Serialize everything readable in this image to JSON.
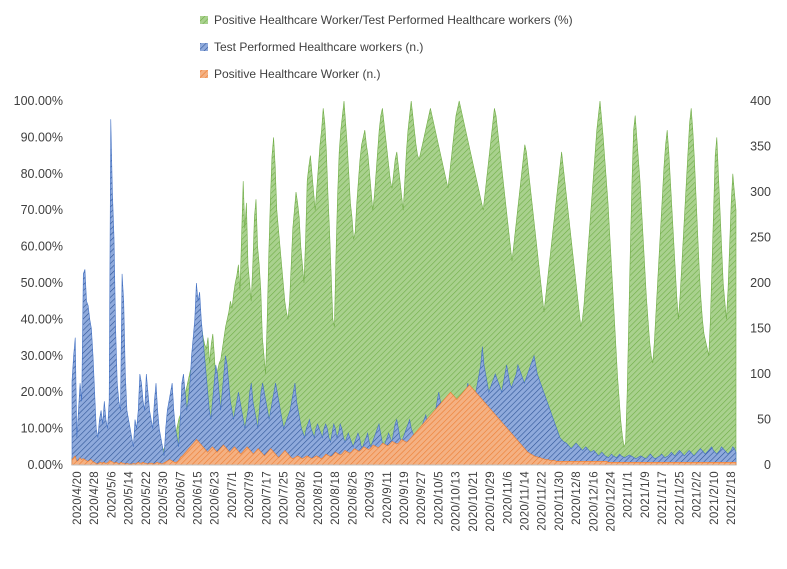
{
  "chart_data": {
    "type": "area",
    "title": "",
    "xlabel": "",
    "ylabel_left": "",
    "ylabel_right": "",
    "ylim_left": [
      0,
      100
    ],
    "ylim_right": [
      0,
      400
    ],
    "y_left_ticks": [
      "0.00%",
      "10.00%",
      "20.00%",
      "30.00%",
      "40.00%",
      "50.00%",
      "60.00%",
      "70.00%",
      "80.00%",
      "90.00%",
      "100.00%"
    ],
    "y_right_ticks": [
      "0",
      "50",
      "100",
      "150",
      "200",
      "250",
      "300",
      "350",
      "400"
    ],
    "x_tick_labels": [
      "2020/4/20",
      "2020/4/28",
      "2020/5/6",
      "2020/5/14",
      "2020/5/22",
      "2020/5/30",
      "2020/6/7",
      "2020/6/15",
      "2020/6/23",
      "2020/7/1",
      "2020/7/9",
      "2020/7/17",
      "2020/7/25",
      "2020/8/2",
      "2020/8/10",
      "2020/8/18",
      "2020/8/26",
      "2020/9/3",
      "2020/9/11",
      "2020/9/19",
      "2020/9/27",
      "2020/10/5",
      "2020/10/13",
      "2020/10/21",
      "2020/10/29",
      "2020/11/6",
      "2020/11/14",
      "2020/11/22",
      "2020/11/30",
      "2020/12/8",
      "2020/12/16",
      "2020/12/24",
      "2021/1/1",
      "2021/1/9",
      "2021/1/17",
      "2021/1/25",
      "2021/2/2",
      "2021/2/10",
      "2021/2/18"
    ],
    "legend_position": "top",
    "grid": false,
    "series": [
      {
        "name": "Positive Healthcare Worker/Test Performed Healthcare workers (%)",
        "axis": "left",
        "unit": "%",
        "color": "#8cc66e",
        "values": [
          2,
          3,
          4,
          5,
          3,
          2,
          2,
          2,
          3,
          2,
          2,
          2,
          1,
          1,
          2,
          3,
          3,
          4,
          3,
          5,
          3,
          3,
          2,
          2,
          4,
          3,
          3,
          2,
          2,
          3,
          1,
          2,
          2,
          2,
          3,
          2,
          3,
          2,
          1,
          2,
          2,
          2,
          3,
          2,
          2,
          3,
          2,
          3,
          2,
          3,
          3,
          2,
          2,
          3,
          5,
          4,
          6,
          4,
          5,
          4,
          5,
          6,
          5,
          6,
          8,
          9,
          11,
          13,
          14,
          16,
          18,
          20,
          22,
          24,
          26,
          27,
          30,
          33,
          36,
          43,
          40,
          38,
          35,
          33,
          32,
          35,
          28,
          33,
          36,
          30,
          22,
          26,
          28,
          29,
          32,
          35,
          38,
          40,
          42,
          45,
          43,
          47,
          50,
          52,
          55,
          48,
          63,
          78,
          65,
          72,
          55,
          50,
          45,
          55,
          68,
          73,
          60,
          55,
          48,
          35,
          30,
          25,
          40,
          58,
          73,
          85,
          90,
          82,
          70,
          65,
          60,
          55,
          50,
          45,
          42,
          40,
          45,
          55,
          65,
          70,
          75,
          72,
          68,
          60,
          55,
          50,
          62,
          78,
          82,
          85,
          80,
          75,
          70,
          76,
          82,
          88,
          92,
          98,
          94,
          86,
          74,
          64,
          52,
          40,
          38,
          58,
          74,
          86,
          92,
          96,
          100,
          94,
          88,
          80,
          72,
          68,
          62,
          64,
          72,
          78,
          84,
          88,
          90,
          92,
          88,
          85,
          80,
          75,
          70,
          74,
          80,
          86,
          92,
          96,
          98,
          94,
          90,
          86,
          82,
          78,
          76,
          80,
          84,
          86,
          82,
          78,
          74,
          70,
          78,
          86,
          92,
          96,
          100,
          96,
          92,
          88,
          85,
          84,
          86,
          88,
          90,
          92,
          94,
          96,
          98,
          96,
          94,
          92,
          90,
          88,
          86,
          84,
          82,
          80,
          78,
          76,
          80,
          84,
          88,
          92,
          96,
          98,
          100,
          98,
          96,
          94,
          92,
          90,
          88,
          86,
          84,
          82,
          80,
          78,
          76,
          74,
          72,
          70,
          74,
          78,
          82,
          86,
          90,
          94,
          98,
          96,
          92,
          88,
          84,
          80,
          76,
          72,
          68,
          64,
          60,
          56,
          60,
          64,
          68,
          72,
          76,
          80,
          84,
          88,
          86,
          82,
          78,
          74,
          70,
          66,
          62,
          58,
          54,
          50,
          46,
          42,
          46,
          50,
          54,
          58,
          62,
          66,
          70,
          74,
          78,
          82,
          86,
          82,
          78,
          74,
          70,
          66,
          62,
          58,
          54,
          50,
          46,
          42,
          38,
          40,
          44,
          50,
          56,
          62,
          68,
          74,
          80,
          86,
          92,
          96,
          100,
          95,
          90,
          84,
          78,
          72,
          64,
          56,
          48,
          40,
          32,
          24,
          18,
          12,
          8,
          5,
          6,
          20,
          40,
          60,
          78,
          92,
          96,
          90,
          84,
          78,
          70,
          62,
          54,
          46,
          40,
          34,
          30,
          28,
          34,
          42,
          50,
          58,
          66,
          74,
          82,
          88,
          92,
          86,
          78,
          70,
          62,
          54,
          46,
          40,
          46,
          54,
          62,
          70,
          78,
          86,
          94,
          98,
          92,
          84,
          74,
          64,
          54,
          46,
          40,
          36,
          34,
          32,
          30,
          40,
          55,
          70,
          85,
          90,
          80,
          70,
          60,
          50,
          45,
          40,
          48,
          60,
          72,
          80,
          75,
          70
        ]
      },
      {
        "name": "Test Performed Healthcare workers (n.)",
        "axis": "right",
        "unit": "n.",
        "color": "#4472c4",
        "values": [
          92,
          120,
          140,
          30,
          60,
          90,
          70,
          210,
          215,
          180,
          175,
          160,
          150,
          120,
          80,
          40,
          30,
          50,
          60,
          45,
          70,
          50,
          40,
          70,
          380,
          300,
          250,
          150,
          90,
          70,
          60,
          210,
          180,
          100,
          60,
          50,
          40,
          30,
          20,
          50,
          40,
          60,
          100,
          90,
          70,
          60,
          100,
          80,
          60,
          50,
          40,
          70,
          90,
          60,
          40,
          30,
          20,
          10,
          40,
          60,
          70,
          80,
          90,
          60,
          40,
          30,
          20,
          50,
          90,
          100,
          80,
          60,
          70,
          90,
          120,
          140,
          160,
          200,
          180,
          190,
          160,
          140,
          120,
          100,
          80,
          60,
          50,
          70,
          90,
          110,
          100,
          80,
          60,
          80,
          100,
          120,
          110,
          90,
          70,
          60,
          50,
          60,
          70,
          80,
          70,
          60,
          50,
          40,
          50,
          60,
          80,
          90,
          70,
          60,
          50,
          40,
          60,
          80,
          90,
          80,
          70,
          60,
          50,
          60,
          70,
          80,
          90,
          80,
          70,
          60,
          50,
          40,
          45,
          50,
          55,
          60,
          70,
          80,
          90,
          70,
          60,
          50,
          40,
          35,
          30,
          40,
          45,
          50,
          40,
          35,
          30,
          40,
          45,
          40,
          35,
          30,
          40,
          45,
          40,
          30,
          25,
          35,
          45,
          40,
          30,
          35,
          45,
          40,
          30,
          25,
          30,
          35,
          30,
          25,
          20,
          25,
          30,
          35,
          30,
          20,
          20,
          25,
          30,
          35,
          25,
          20,
          25,
          30,
          35,
          40,
          45,
          35,
          25,
          20,
          25,
          30,
          35,
          30,
          25,
          35,
          45,
          50,
          40,
          30,
          25,
          30,
          35,
          40,
          45,
          50,
          40,
          35,
          30,
          25,
          30,
          35,
          40,
          45,
          50,
          55,
          45,
          40,
          35,
          40,
          50,
          60,
          70,
          80,
          70,
          60,
          50,
          45,
          50,
          55,
          60,
          65,
          70,
          60,
          50,
          45,
          50,
          55,
          60,
          70,
          80,
          90,
          80,
          70,
          60,
          70,
          80,
          90,
          100,
          110,
          130,
          110,
          100,
          90,
          80,
          85,
          90,
          95,
          100,
          95,
          90,
          85,
          80,
          90,
          100,
          110,
          100,
          90,
          85,
          90,
          95,
          100,
          110,
          105,
          100,
          95,
          90,
          95,
          100,
          105,
          110,
          115,
          120,
          110,
          100,
          95,
          90,
          85,
          80,
          75,
          70,
          65,
          60,
          55,
          50,
          45,
          40,
          35,
          30,
          28,
          26,
          25,
          24,
          22,
          20,
          18,
          20,
          22,
          24,
          22,
          20,
          18,
          16,
          18,
          20,
          18,
          16,
          14,
          15,
          16,
          14,
          12,
          10,
          12,
          14,
          12,
          10,
          9,
          8,
          10,
          12,
          10,
          9,
          8,
          10,
          12,
          10,
          9,
          8,
          9,
          10,
          11,
          10,
          9,
          8,
          7,
          8,
          9,
          10,
          9,
          8,
          7,
          8,
          10,
          12,
          10,
          8,
          7,
          8,
          9,
          10,
          12,
          10,
          8,
          9,
          10,
          12,
          14,
          12,
          10,
          12,
          14,
          16,
          14,
          12,
          10,
          12,
          14,
          16,
          14,
          12,
          10,
          12,
          14,
          16,
          18,
          16,
          14,
          12,
          14,
          16,
          18,
          20,
          16,
          14,
          12,
          14,
          16,
          20,
          18,
          16,
          14,
          12,
          14,
          16,
          20,
          18,
          14
        ]
      },
      {
        "name": "Positive Healthcare Worker (n.)",
        "axis": "right",
        "unit": "n.",
        "color": "#ed7d31",
        "values": [
          6,
          8,
          10,
          4,
          5,
          8,
          6,
          7,
          6,
          5,
          4,
          5,
          6,
          4,
          3,
          2,
          1,
          2,
          3,
          2,
          3,
          2,
          2,
          3,
          5,
          4,
          3,
          2,
          3,
          2,
          1,
          3,
          2,
          2,
          1,
          2,
          1,
          1,
          1,
          2,
          1,
          2,
          3,
          2,
          2,
          3,
          2,
          2,
          1,
          2,
          2,
          2,
          1,
          2,
          3,
          2,
          2,
          1,
          2,
          3,
          4,
          5,
          6,
          5,
          4,
          3,
          3,
          4,
          6,
          9,
          10,
          12,
          14,
          16,
          18,
          20,
          22,
          24,
          26,
          28,
          26,
          24,
          22,
          20,
          18,
          16,
          14,
          16,
          18,
          20,
          18,
          16,
          14,
          16,
          18,
          20,
          22,
          20,
          18,
          16,
          14,
          16,
          18,
          20,
          18,
          16,
          14,
          12,
          14,
          16,
          18,
          20,
          18,
          16,
          14,
          12,
          14,
          16,
          18,
          16,
          14,
          12,
          10,
          12,
          14,
          16,
          18,
          16,
          14,
          12,
          10,
          8,
          10,
          12,
          14,
          16,
          14,
          12,
          10,
          8,
          7,
          8,
          9,
          10,
          9,
          8,
          7,
          8,
          9,
          10,
          9,
          8,
          7,
          8,
          9,
          10,
          9,
          8,
          7,
          8,
          10,
          12,
          11,
          10,
          9,
          10,
          12,
          14,
          13,
          12,
          11,
          12,
          14,
          16,
          15,
          14,
          13,
          14,
          16,
          18,
          17,
          16,
          15,
          16,
          18,
          20,
          19,
          18,
          17,
          18,
          20,
          22,
          21,
          20,
          19,
          20,
          22,
          24,
          23,
          22,
          21,
          22,
          24,
          26,
          25,
          24,
          23,
          24,
          26,
          28,
          27,
          26,
          25,
          26,
          28,
          30,
          32,
          34,
          36,
          38,
          40,
          42,
          44,
          46,
          48,
          50,
          52,
          54,
          56,
          58,
          60,
          62,
          64,
          66,
          68,
          70,
          72,
          74,
          76,
          78,
          80,
          78,
          76,
          74,
          72,
          74,
          76,
          78,
          80,
          82,
          84,
          86,
          88,
          86,
          84,
          82,
          80,
          78,
          76,
          74,
          72,
          70,
          68,
          66,
          64,
          62,
          60,
          58,
          56,
          54,
          52,
          50,
          48,
          46,
          44,
          42,
          40,
          38,
          36,
          34,
          32,
          30,
          28,
          26,
          24,
          22,
          20,
          18,
          16,
          14,
          13,
          12,
          11,
          10,
          9,
          9,
          8,
          8,
          7,
          7,
          6,
          6,
          6,
          5,
          5,
          5,
          5,
          4,
          4,
          4,
          4,
          4,
          4,
          4,
          4,
          4,
          4,
          4,
          4,
          4,
          4,
          4,
          4,
          4,
          4,
          4,
          4,
          4,
          4,
          4,
          4,
          4,
          4,
          4,
          4,
          4,
          4,
          4,
          4,
          4,
          3,
          3,
          3,
          3,
          3,
          3,
          3,
          3,
          3,
          3,
          3,
          3,
          3,
          3,
          3,
          3,
          3,
          3,
          3,
          3,
          3,
          3,
          3,
          3,
          3,
          3,
          3,
          3,
          3,
          3,
          3,
          3,
          3,
          3,
          3,
          3,
          3,
          3,
          3,
          3,
          3,
          3,
          3,
          3,
          3,
          3,
          3,
          3,
          3,
          3,
          3,
          3,
          3,
          3,
          3,
          3,
          3,
          3,
          3,
          3,
          3,
          3,
          3,
          3,
          3,
          3,
          3,
          3,
          3,
          3,
          3,
          3,
          3,
          3,
          3,
          3,
          3,
          3,
          3,
          3,
          3,
          3
        ]
      }
    ]
  }
}
